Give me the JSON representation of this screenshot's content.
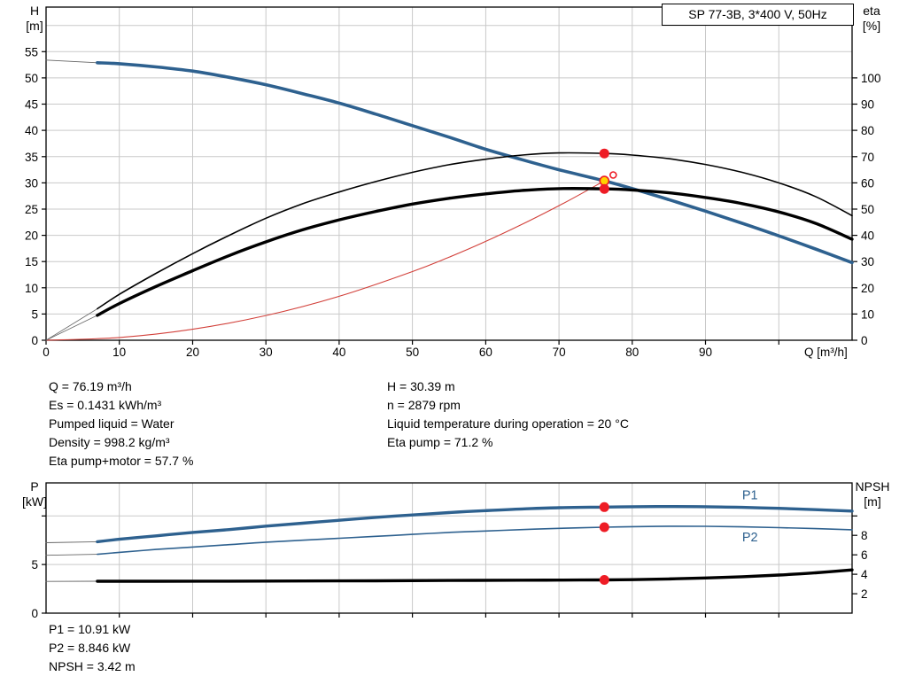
{
  "title_box": "SP 77-3B, 3*400 V, 50Hz",
  "axis_titles": {
    "h": [
      "H",
      "[m]"
    ],
    "eta": [
      "eta",
      "[%]"
    ],
    "p": [
      "P",
      "[kW]"
    ],
    "npsh": [
      "NPSH",
      "[m]"
    ]
  },
  "operating_point": {
    "left_lines": [
      "Q = 76.19 m³/h",
      "Es = 0.1431 kWh/m³",
      "Pumped liquid = Water",
      "Density = 998.2 kg/m³",
      "Eta pump+motor = 57.7 %"
    ],
    "right_lines": [
      "H = 30.39 m",
      "n = 2879 rpm",
      "Liquid temperature during operation = 20 °C",
      "Eta pump = 71.2 %"
    ]
  },
  "results": [
    "P1 = 10.91 kW",
    "P2 = 8.846 kW",
    "NPSH = 3.42 m"
  ],
  "colors": {
    "curve_blue": "#2e618f",
    "curve_black": "#000000",
    "system_red": "#d2403a",
    "marker_red": "#ee1c25",
    "marker_yellow": "#ffd400",
    "leadin_gray": "#666666",
    "grid": "#c9c9c9"
  },
  "chart_data": [
    {
      "type": "line",
      "title": "Q/H and efficiency curves",
      "grid_color": "#c9c9c9",
      "x_axis": {
        "label": "Q [m³/h]",
        "min": 0,
        "max": 110,
        "ticks": [
          0,
          10,
          20,
          30,
          40,
          50,
          60,
          70,
          80,
          90
        ],
        "extra_tick_marks": [
          100
        ],
        "grid": [
          10,
          20,
          30,
          40,
          50,
          60,
          70,
          80,
          90,
          100
        ]
      },
      "left_axis": {
        "title": "H [m]",
        "min": 0,
        "max": 63.5,
        "ticks": [
          0,
          5,
          10,
          15,
          20,
          25,
          30,
          35,
          40,
          45,
          50,
          55
        ],
        "extra_tick_marks": [],
        "grid": [
          5,
          10,
          15,
          20,
          25,
          30,
          35,
          40,
          45,
          50,
          55,
          60
        ]
      },
      "right_axis": {
        "title": "eta [%]",
        "min": 0,
        "max": 127,
        "ticks": [
          0,
          10,
          20,
          30,
          40,
          50,
          60,
          70,
          80,
          90,
          100
        ],
        "extra_tick_marks": []
      },
      "series": [
        {
          "name": "system-curve",
          "axis": "left",
          "color": "#d2403a",
          "width": 1.1,
          "points": [
            [
              0,
              0
            ],
            [
              10,
              0.52
            ],
            [
              20,
              2.09
            ],
            [
              30,
              4.71
            ],
            [
              40,
              8.37
            ],
            [
              50,
              13.09
            ],
            [
              55,
              15.83
            ],
            [
              60,
              18.84
            ],
            [
              65,
              22.12
            ],
            [
              70,
              25.65
            ],
            [
              73,
              27.9
            ],
            [
              76.19,
              30.39
            ]
          ]
        },
        {
          "name": "head-curve-leadin",
          "axis": "left",
          "color": "#666666",
          "width": 0.9,
          "points": [
            [
              0,
              53.4
            ],
            [
              7,
              52.9
            ]
          ]
        },
        {
          "name": "eta-pump-leadin",
          "axis": "right",
          "color": "#666666",
          "width": 0.8,
          "points": [
            [
              0,
              0
            ],
            [
              7,
              12
            ]
          ]
        },
        {
          "name": "eta-pump-motor-leadin",
          "axis": "right",
          "color": "#666666",
          "width": 0.8,
          "points": [
            [
              0,
              0
            ],
            [
              7,
              9.5
            ]
          ]
        },
        {
          "name": "head-curve",
          "axis": "left",
          "color": "#2e618f",
          "width": 3.6,
          "points": [
            [
              7,
              52.9
            ],
            [
              10,
              52.7
            ],
            [
              15,
              52.1
            ],
            [
              20,
              51.3
            ],
            [
              25,
              50.1
            ],
            [
              30,
              48.7
            ],
            [
              35,
              47.0
            ],
            [
              40,
              45.2
            ],
            [
              45,
              43.1
            ],
            [
              50,
              40.9
            ],
            [
              55,
              38.7
            ],
            [
              60,
              36.4
            ],
            [
              65,
              34.4
            ],
            [
              70,
              32.5
            ],
            [
              76.19,
              30.39
            ],
            [
              80,
              28.9
            ],
            [
              85,
              26.8
            ],
            [
              90,
              24.6
            ],
            [
              95,
              22.3
            ],
            [
              100,
              19.9
            ],
            [
              105,
              17.4
            ],
            [
              110,
              14.8
            ]
          ]
        },
        {
          "name": "eta-pump-curve",
          "axis": "right",
          "color": "#000000",
          "width": 1.6,
          "points": [
            [
              7,
              12
            ],
            [
              10,
              17.5
            ],
            [
              15,
              25.5
            ],
            [
              20,
              33
            ],
            [
              25,
              40
            ],
            [
              30,
              46.5
            ],
            [
              35,
              52
            ],
            [
              40,
              56.5
            ],
            [
              45,
              60.5
            ],
            [
              50,
              64
            ],
            [
              55,
              66.9
            ],
            [
              60,
              69
            ],
            [
              65,
              70.6
            ],
            [
              70,
              71.4
            ],
            [
              76.19,
              71.2
            ],
            [
              80,
              70.6
            ],
            [
              85,
              69.2
            ],
            [
              90,
              67
            ],
            [
              95,
              64
            ],
            [
              100,
              60
            ],
            [
              105,
              54.8
            ],
            [
              110,
              47.5
            ]
          ]
        },
        {
          "name": "eta-pump-motor-curve",
          "axis": "right",
          "color": "#000000",
          "width": 3.4,
          "points": [
            [
              7,
              9.5
            ],
            [
              10,
              14
            ],
            [
              15,
              20.5
            ],
            [
              20,
              26.5
            ],
            [
              25,
              32.3
            ],
            [
              30,
              37.5
            ],
            [
              35,
              42.1
            ],
            [
              40,
              45.9
            ],
            [
              45,
              49.1
            ],
            [
              50,
              51.9
            ],
            [
              55,
              54.1
            ],
            [
              60,
              55.8
            ],
            [
              65,
              57.1
            ],
            [
              70,
              57.8
            ],
            [
              76.19,
              57.7
            ],
            [
              80,
              57.3
            ],
            [
              85,
              56.2
            ],
            [
              90,
              54.4
            ],
            [
              95,
              52.1
            ],
            [
              100,
              48.9
            ],
            [
              105,
              44.6
            ],
            [
              110,
              38.5
            ]
          ]
        }
      ],
      "markers": [
        {
          "name": "eta-pump-op-point",
          "x": 76.19,
          "y": 71.2,
          "axis": "right",
          "r": 5.5,
          "fill": "#ee1c25"
        },
        {
          "name": "head-intersection-ring",
          "x": 77.4,
          "y": 31.5,
          "axis": "left",
          "r": 3.5,
          "fill": "none",
          "stroke": "#ee1c25"
        },
        {
          "name": "duty-point",
          "x": 76.19,
          "y": 30.39,
          "axis": "left",
          "r": 5,
          "fill": "#ffd400",
          "stroke": "#ee1c25"
        },
        {
          "name": "eta-pump-motor-op-point",
          "x": 76.19,
          "y": 57.7,
          "axis": "right",
          "r": 5.5,
          "fill": "#ee1c25"
        }
      ]
    },
    {
      "type": "line",
      "title": "Power and NPSH curves",
      "grid_color": "#c9c9c9",
      "x_axis": {
        "label": "",
        "min": 0,
        "max": 110,
        "ticks": [],
        "extra_tick_marks": [
          10,
          20,
          30,
          40,
          50,
          60,
          70,
          80,
          90,
          100
        ],
        "grid": [
          10,
          20,
          30,
          40,
          50,
          60,
          70,
          80,
          90,
          100
        ]
      },
      "left_axis": {
        "title": "P [kW]",
        "min": 0,
        "max": 13.4,
        "ticks": [
          0,
          5
        ],
        "extra_tick_marks": [
          10
        ],
        "grid": [
          5,
          10
        ]
      },
      "right_axis": {
        "title": "NPSH [m]",
        "min": 0,
        "max": 13.4,
        "ticks": [
          2,
          4,
          6,
          8
        ],
        "extra_tick_marks": [
          10
        ]
      },
      "series": [
        {
          "name": "p1-leadin",
          "axis": "left",
          "color": "#666666",
          "width": 0.9,
          "points": [
            [
              0,
              7.25
            ],
            [
              7,
              7.35
            ]
          ]
        },
        {
          "name": "p2-leadin",
          "axis": "left",
          "color": "#666666",
          "width": 0.9,
          "points": [
            [
              0,
              5.95
            ],
            [
              7,
              6.05
            ]
          ]
        },
        {
          "name": "npsh-leadin",
          "axis": "right",
          "color": "#666666",
          "width": 0.9,
          "points": [
            [
              0,
              3.26
            ],
            [
              7,
              3.28
            ]
          ]
        },
        {
          "name": "p1-curve",
          "axis": "left",
          "color": "#2e618f",
          "width": 3.4,
          "label": {
            "text": "P1",
            "x": 95,
            "y": 11.7
          },
          "points": [
            [
              7,
              7.35
            ],
            [
              10,
              7.6
            ],
            [
              15,
              7.95
            ],
            [
              20,
              8.3
            ],
            [
              25,
              8.6
            ],
            [
              30,
              8.95
            ],
            [
              35,
              9.25
            ],
            [
              40,
              9.55
            ],
            [
              45,
              9.85
            ],
            [
              50,
              10.1
            ],
            [
              55,
              10.35
            ],
            [
              60,
              10.55
            ],
            [
              65,
              10.72
            ],
            [
              70,
              10.85
            ],
            [
              76.19,
              10.91
            ],
            [
              80,
              10.95
            ],
            [
              85,
              10.97
            ],
            [
              90,
              10.95
            ],
            [
              95,
              10.88
            ],
            [
              100,
              10.78
            ],
            [
              105,
              10.65
            ],
            [
              110,
              10.5
            ]
          ]
        },
        {
          "name": "p2-curve",
          "axis": "left",
          "color": "#2e618f",
          "width": 1.6,
          "label": {
            "text": "P2",
            "x": 95,
            "y": 7.4
          },
          "points": [
            [
              7,
              6.05
            ],
            [
              10,
              6.25
            ],
            [
              15,
              6.55
            ],
            [
              20,
              6.8
            ],
            [
              25,
              7.05
            ],
            [
              30,
              7.3
            ],
            [
              35,
              7.5
            ],
            [
              40,
              7.7
            ],
            [
              45,
              7.9
            ],
            [
              50,
              8.1
            ],
            [
              55,
              8.3
            ],
            [
              60,
              8.45
            ],
            [
              65,
              8.6
            ],
            [
              70,
              8.72
            ],
            [
              76.19,
              8.846
            ],
            [
              80,
              8.9
            ],
            [
              85,
              8.94
            ],
            [
              90,
              8.93
            ],
            [
              95,
              8.88
            ],
            [
              100,
              8.8
            ],
            [
              105,
              8.7
            ],
            [
              110,
              8.58
            ]
          ]
        },
        {
          "name": "npsh-curve",
          "axis": "right",
          "color": "#000000",
          "width": 3.4,
          "points": [
            [
              7,
              3.28
            ],
            [
              15,
              3.28
            ],
            [
              25,
              3.29
            ],
            [
              35,
              3.31
            ],
            [
              45,
              3.33
            ],
            [
              55,
              3.36
            ],
            [
              65,
              3.39
            ],
            [
              70,
              3.4
            ],
            [
              76.19,
              3.42
            ],
            [
              80,
              3.45
            ],
            [
              85,
              3.52
            ],
            [
              90,
              3.62
            ],
            [
              95,
              3.75
            ],
            [
              100,
              3.92
            ],
            [
              105,
              4.15
            ],
            [
              110,
              4.45
            ]
          ]
        }
      ],
      "markers": [
        {
          "name": "p1-op-point",
          "x": 76.19,
          "y": 10.91,
          "axis": "left",
          "r": 5.5,
          "fill": "#ee1c25"
        },
        {
          "name": "p2-op-point",
          "x": 76.19,
          "y": 8.846,
          "axis": "left",
          "r": 5.5,
          "fill": "#ee1c25"
        },
        {
          "name": "npsh-op-point",
          "x": 76.19,
          "y": 3.42,
          "axis": "right",
          "r": 5.5,
          "fill": "#ee1c25"
        }
      ]
    }
  ]
}
